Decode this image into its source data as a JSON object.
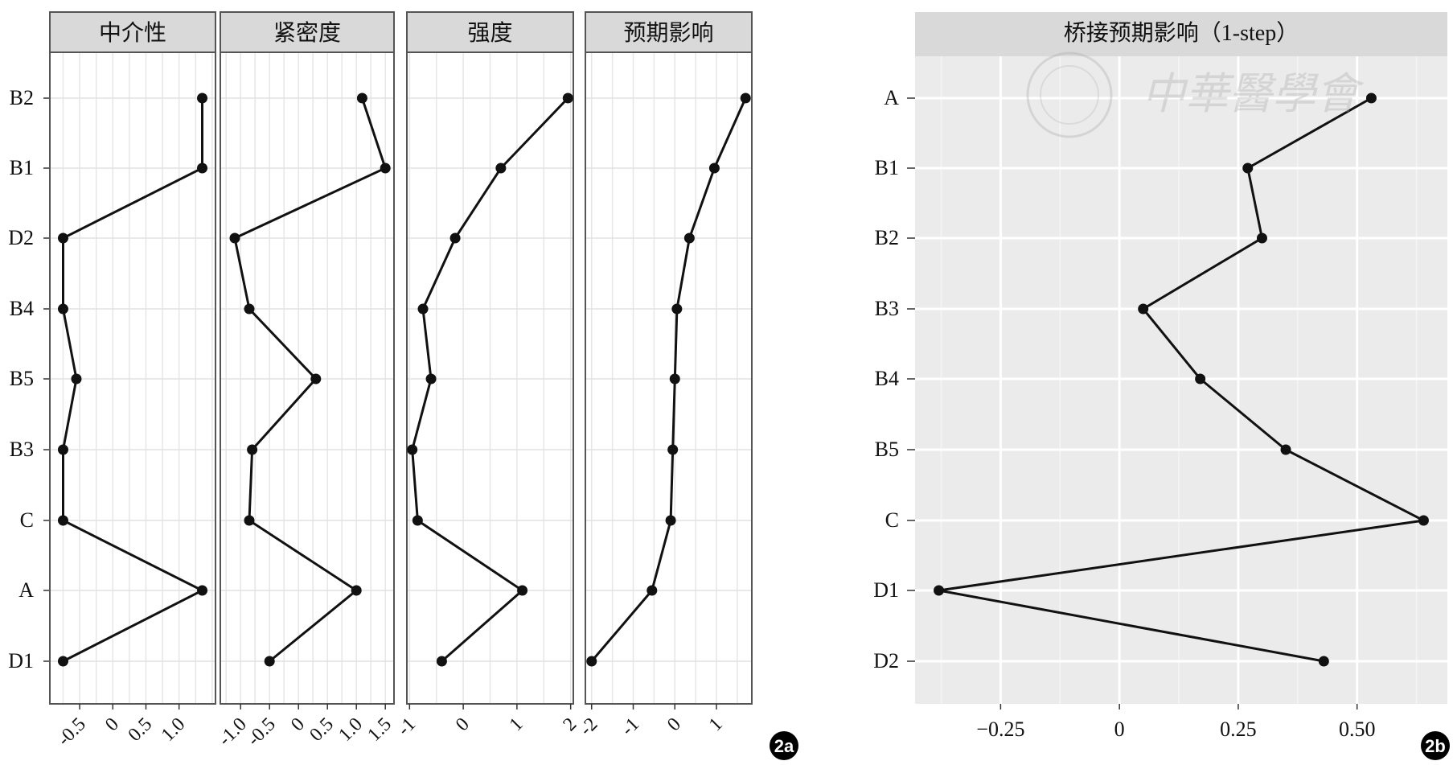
{
  "figure": {
    "label_2a": "2a",
    "label_2b": "2b",
    "watermark_text": "中華醫學會"
  },
  "chart_data": [
    {
      "type": "line",
      "id": "2a",
      "categories": [
        "B2",
        "B1",
        "D2",
        "B4",
        "B5",
        "B3",
        "C",
        "A",
        "D1"
      ],
      "series": [
        {
          "name": "中介性",
          "title": "中介性",
          "values": [
            1.35,
            1.35,
            -0.75,
            -0.75,
            -0.55,
            -0.75,
            -0.75,
            1.35,
            -0.75
          ],
          "xlim": [
            -0.95,
            1.55
          ],
          "ticks": [
            {
              "v": -0.5,
              "t": "-0.5"
            },
            {
              "v": 0,
              "t": "0"
            },
            {
              "v": 0.5,
              "t": "0.5"
            },
            {
              "v": 1.0,
              "t": "1.0"
            }
          ]
        },
        {
          "name": "紧密度",
          "title": "紧密度",
          "values": [
            1.1,
            1.5,
            -1.1,
            -0.85,
            0.3,
            -0.8,
            -0.85,
            1.0,
            -0.5
          ],
          "xlim": [
            -1.35,
            1.65
          ],
          "ticks": [
            {
              "v": -1.0,
              "t": "-1.0"
            },
            {
              "v": -0.5,
              "t": "-0.5"
            },
            {
              "v": 0,
              "t": "0"
            },
            {
              "v": 0.5,
              "t": "0.5"
            },
            {
              "v": 1.0,
              "t": "1.0"
            },
            {
              "v": 1.5,
              "t": "1.5"
            }
          ]
        },
        {
          "name": "强度",
          "title": "强度",
          "values": [
            1.95,
            0.7,
            -0.15,
            -0.75,
            -0.6,
            -0.95,
            -0.85,
            1.1,
            -0.4
          ],
          "xlim": [
            -1.05,
            2.05
          ],
          "ticks": [
            {
              "v": -1,
              "t": "-1"
            },
            {
              "v": 0,
              "t": "0"
            },
            {
              "v": 1,
              "t": "1"
            },
            {
              "v": 2,
              "t": "2"
            }
          ]
        },
        {
          "name": "预期影响",
          "title": "预期影响",
          "values": [
            1.7,
            0.95,
            0.35,
            0.05,
            0,
            -0.05,
            -0.1,
            -0.55,
            -2.0
          ],
          "xlim": [
            -2.15,
            1.85
          ],
          "ticks": [
            {
              "v": -2,
              "t": "-2"
            },
            {
              "v": -1,
              "t": "-1"
            },
            {
              "v": 0,
              "t": "0"
            },
            {
              "v": 1,
              "t": "1"
            }
          ]
        }
      ],
      "grid": true
    },
    {
      "type": "line",
      "id": "2b",
      "title": "桥接预期影响（1-step）",
      "categories": [
        "A",
        "B1",
        "B2",
        "B3",
        "B4",
        "B5",
        "C",
        "D1",
        "D2"
      ],
      "values": [
        0.53,
        0.27,
        0.3,
        0.05,
        0.17,
        0.35,
        0.64,
        -0.38,
        0.43
      ],
      "xlim": [
        -0.43,
        0.69
      ],
      "ticks": [
        {
          "v": -0.25,
          "t": "−0.25"
        },
        {
          "v": 0,
          "t": "0"
        },
        {
          "v": 0.25,
          "t": "0.25"
        },
        {
          "v": 0.5,
          "t": "0.50"
        }
      ],
      "grid": true
    }
  ]
}
